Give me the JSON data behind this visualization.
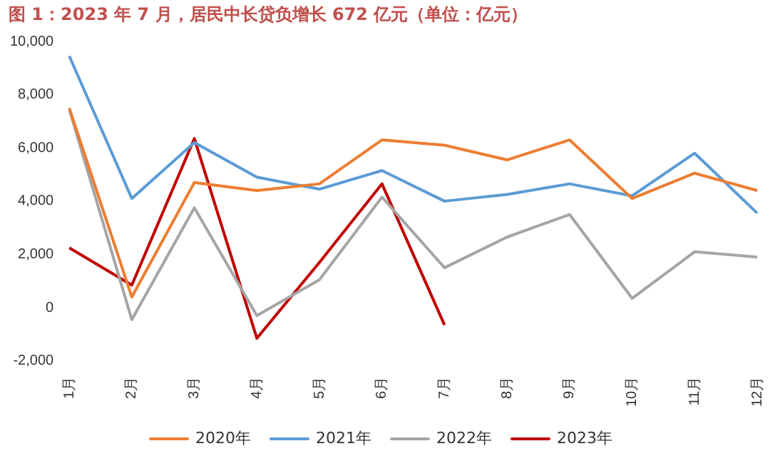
{
  "chart_data": {
    "type": "line",
    "title": "图 1：2023 年 7 月，居民中长贷负增长 672 亿元（单位：亿元）",
    "categories": [
      "1月",
      "2月",
      "3月",
      "4月",
      "5月",
      "6月",
      "7月",
      "8月",
      "9月",
      "10月",
      "11月",
      "12月"
    ],
    "series": [
      {
        "name": "2020年",
        "color": "#ed7d31",
        "values": [
          7500,
          400,
          4700,
          4400,
          4650,
          6300,
          6100,
          5550,
          6300,
          4100,
          5050,
          4400
        ]
      },
      {
        "name": "2021年",
        "color": "#5b9bd5",
        "values": [
          9450,
          4100,
          6200,
          4900,
          4450,
          5150,
          4000,
          4250,
          4650,
          4200,
          5800,
          3550
        ]
      },
      {
        "name": "2022年",
        "color": "#a5a5a5",
        "values": [
          7450,
          -450,
          3750,
          -300,
          1050,
          4150,
          1500,
          2650,
          3500,
          350,
          2100,
          1900
        ]
      },
      {
        "name": "2023年",
        "color": "#c00000",
        "values": [
          2250,
          850,
          6350,
          -1150,
          1700,
          4650,
          -650,
          null,
          null,
          null,
          null,
          null
        ]
      }
    ],
    "ylim": [
      -2000,
      10000
    ],
    "yticks": [
      {
        "value": -2000,
        "label": "-2,000"
      },
      0,
      {
        "value": 2000,
        "label": "2,000"
      },
      {
        "value": 4000,
        "label": "4,000"
      },
      {
        "value": 6000,
        "label": "6,000"
      },
      {
        "value": 8000,
        "label": "8,000"
      },
      {
        "value": 10000,
        "label": "10,000"
      }
    ],
    "grid": false,
    "legend": "bottom",
    "marker": "none",
    "line_style": "solid"
  }
}
